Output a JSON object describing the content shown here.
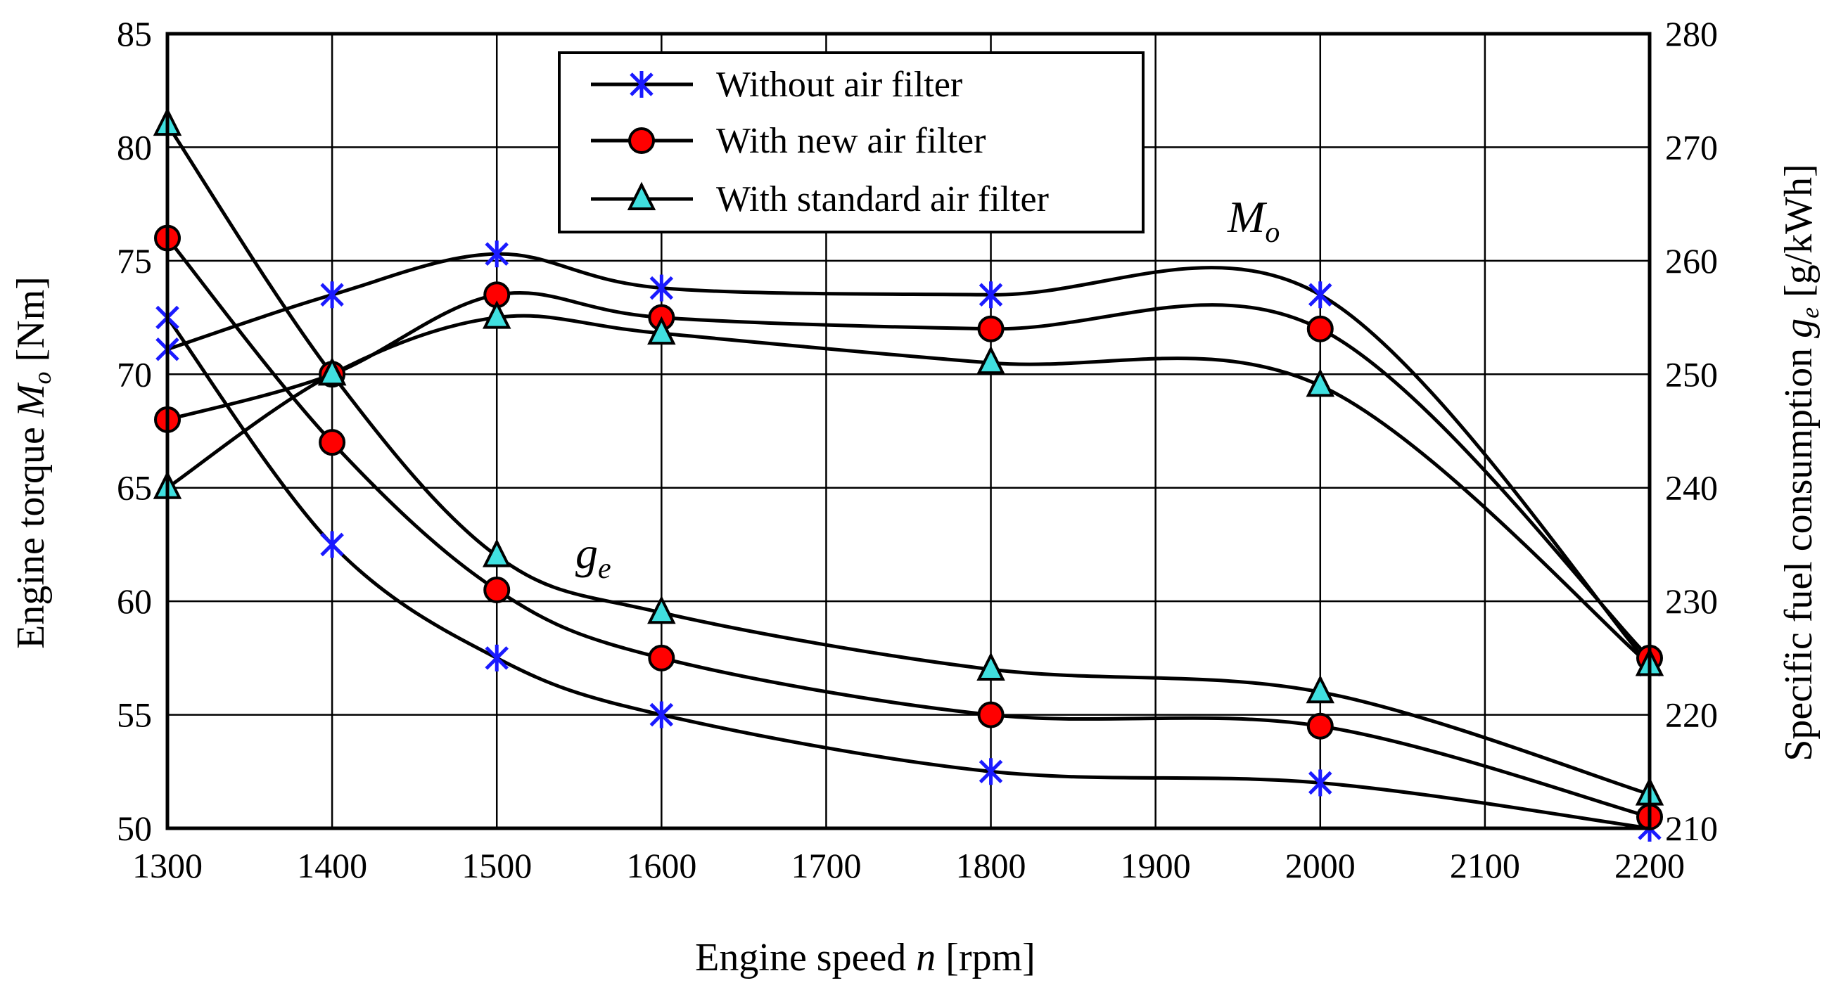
{
  "chart_data": {
    "type": "line",
    "xlabel": {
      "prefix": "Engine speed ",
      "var": "n",
      "unit": " [rpm]"
    },
    "ylabel_left": {
      "prefix": "Engine torque ",
      "var": "M",
      "sub": "o",
      "unit": " [Nm]"
    },
    "ylabel_right": {
      "prefix": "Specific fuel consumption ",
      "var": "g",
      "sub": "e",
      "unit": " [g/kWh]"
    },
    "x": [
      1300,
      1400,
      1500,
      1600,
      1800,
      2000,
      2200
    ],
    "xlim": [
      1300,
      2200
    ],
    "xticks": [
      1300,
      1400,
      1500,
      1600,
      1700,
      1800,
      1900,
      2000,
      2100,
      2200
    ],
    "ylim_left": [
      50,
      85
    ],
    "yticks_left": [
      50,
      55,
      60,
      65,
      70,
      75,
      80,
      85
    ],
    "ylim_right": [
      210,
      280
    ],
    "yticks_right": [
      210,
      220,
      230,
      240,
      250,
      260,
      270,
      280
    ],
    "grid": true,
    "legend_position": "top-center",
    "annotations": {
      "torque": {
        "var": "M",
        "sub": "o"
      },
      "fuel": {
        "var": "g",
        "sub": "e"
      }
    },
    "series": [
      {
        "name": "Without air filter",
        "marker": "asterisk",
        "color": "#1a1aff",
        "torque": [
          71.1,
          73.5,
          75.3,
          73.8,
          73.5,
          73.5,
          57.2
        ],
        "fuel": [
          255,
          235,
          225,
          220,
          215,
          214,
          210
        ]
      },
      {
        "name": "With new air filter",
        "marker": "circle",
        "color": "#ff0000",
        "torque": [
          68.0,
          70.0,
          73.5,
          72.5,
          72.0,
          72.0,
          57.5
        ],
        "fuel": [
          262,
          244,
          231,
          225,
          220,
          219,
          211
        ]
      },
      {
        "name": "With standard air filter",
        "marker": "triangle",
        "color": "#40e0e0",
        "torque": [
          65.0,
          70.0,
          72.5,
          71.8,
          70.5,
          69.5,
          57.2
        ],
        "fuel": [
          272,
          250,
          234,
          229,
          224,
          222,
          213
        ]
      }
    ]
  }
}
